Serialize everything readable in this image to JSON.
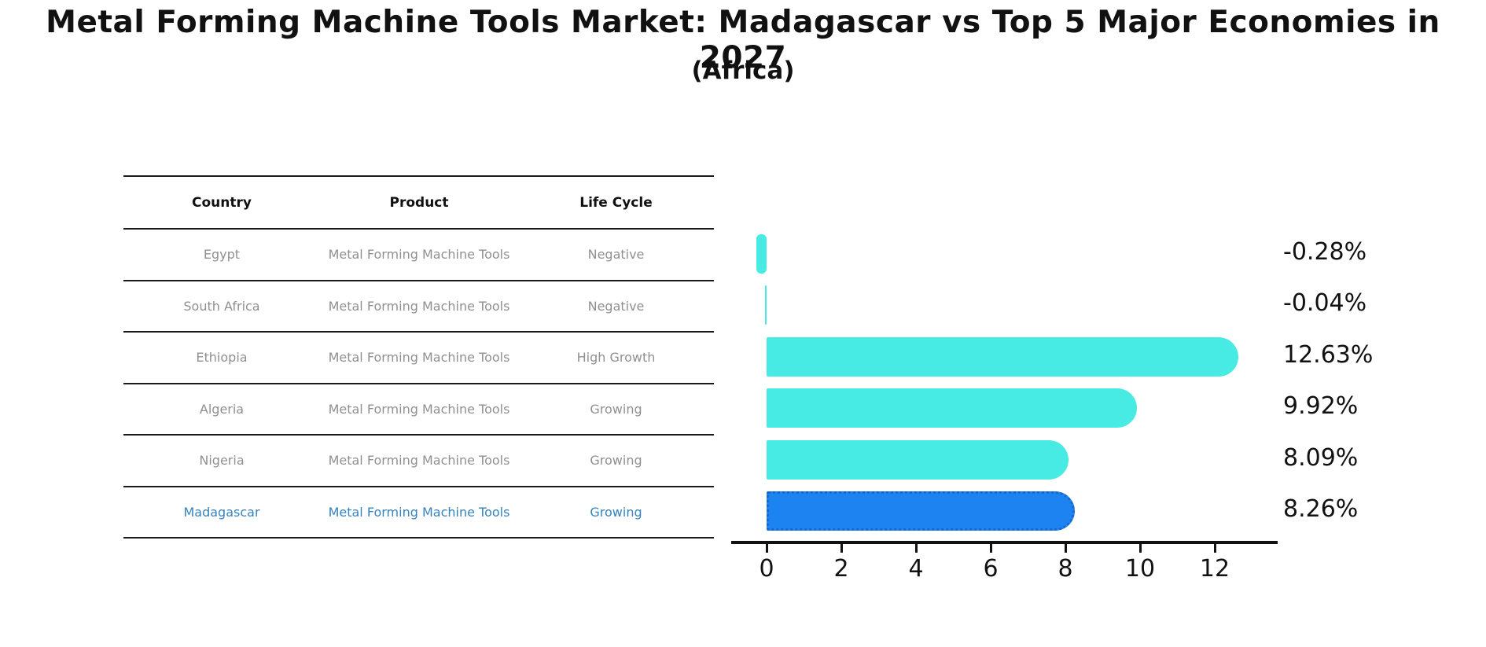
{
  "title": "Metal Forming Machine Tools Market: Madagascar vs Top 5 Major Economies in 2027",
  "subtitle": "(Africa)",
  "table": {
    "headers": [
      "Country",
      "Product",
      "Life Cycle"
    ],
    "rows": [
      {
        "country": "Egypt",
        "product": "Metal Forming Machine Tools",
        "life_cycle": "Negative",
        "highlighted": false
      },
      {
        "country": "South Africa",
        "product": "Metal Forming Machine Tools",
        "life_cycle": "Negative",
        "highlighted": false
      },
      {
        "country": "Ethiopia",
        "product": "Metal Forming Machine Tools",
        "life_cycle": "High Growth",
        "highlighted": false
      },
      {
        "country": "Algeria",
        "product": "Metal Forming Machine Tools",
        "life_cycle": "Growing",
        "highlighted": false
      },
      {
        "country": "Nigeria",
        "product": "Metal Forming Machine Tools",
        "life_cycle": "Growing",
        "highlighted": false
      },
      {
        "country": "Madagascar",
        "product": "Metal Forming Machine Tools",
        "life_cycle": "Growing",
        "highlighted": true
      }
    ]
  },
  "chart_data": {
    "type": "bar",
    "orientation": "horizontal",
    "title": "Metal Forming Machine Tools Market: Madagascar vs Top 5 Major Economies in 2027 (Africa)",
    "categories": [
      "Egypt",
      "South Africa",
      "Ethiopia",
      "Algeria",
      "Nigeria",
      "Madagascar"
    ],
    "values": [
      -0.28,
      -0.04,
      12.63,
      9.92,
      8.09,
      8.26
    ],
    "value_labels": [
      "-0.28%",
      "-0.04%",
      "12.63%",
      "9.92%",
      "8.09%",
      "8.26%"
    ],
    "xticks": [
      0,
      2,
      4,
      6,
      8,
      10,
      12
    ],
    "xlim": [
      -1,
      13.7
    ],
    "grid": false,
    "legend": false,
    "bar_color": "#48EAE4",
    "highlight_index": 5,
    "highlight_color": "#1D83F0",
    "highlight_border_color": "#1668CF"
  },
  "colors": {
    "text": "#111111",
    "muted_text": "#909090",
    "highlight_text": "#3583BF",
    "background": "#FFFFFF"
  }
}
